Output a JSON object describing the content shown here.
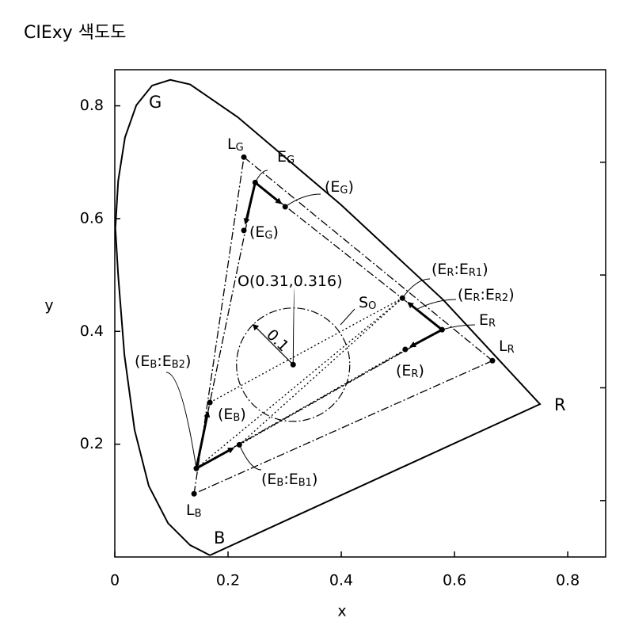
{
  "chart_data": {
    "type": "chromaticity",
    "title": "CIExy 색도도",
    "xlabel": "x",
    "ylabel": "y",
    "xlim": [
      0,
      0.867
    ],
    "ylim": [
      0,
      0.864
    ],
    "xticks": [
      0,
      0.2,
      0.4,
      0.6,
      0.8
    ],
    "yticks": [
      0.2,
      0.4,
      0.6,
      0.8
    ],
    "yminorticks": [
      0.1,
      0.3,
      0.5,
      0.7
    ],
    "locus": {
      "x": [
        0.168,
        0.133,
        0.094,
        0.06,
        0.035,
        0.017,
        0.006,
        0.001,
        0.006,
        0.018,
        0.038,
        0.066,
        0.098,
        0.133,
        0.217,
        0.399,
        0.58,
        0.751,
        0.168
      ],
      "y": [
        0.003,
        0.021,
        0.06,
        0.126,
        0.225,
        0.358,
        0.499,
        0.583,
        0.667,
        0.744,
        0.801,
        0.836,
        0.846,
        0.838,
        0.78,
        0.625,
        0.456,
        0.271,
        0.003
      ]
    },
    "locus_labels": [
      "G",
      "R",
      "B"
    ],
    "points": [
      {
        "label": [
          "L",
          "G"
        ],
        "x": 0.228,
        "y": 0.709
      },
      {
        "label": [
          "E",
          "G"
        ],
        "x": 0.248,
        "y": 0.664
      },
      {
        "label": [
          "(E",
          "G",
          ")"
        ],
        "x": 0.301,
        "y": 0.621
      },
      {
        "label": [
          "(E",
          "G",
          ")"
        ],
        "x": 0.228,
        "y": 0.579
      },
      {
        "label": [
          "(E",
          "R",
          ":E",
          "R1",
          ")"
        ],
        "x": 0.508,
        "y": 0.459
      },
      {
        "label": [
          "(E",
          "R",
          ":E",
          "R2",
          ")"
        ],
        "x": 0.535,
        "y": 0.44,
        "marker": false
      },
      {
        "label": [
          "E",
          "R"
        ],
        "x": 0.578,
        "y": 0.403
      },
      {
        "label": [
          "(E",
          "R",
          ")"
        ],
        "x": 0.513,
        "y": 0.368
      },
      {
        "label": [
          "L",
          "R"
        ],
        "x": 0.667,
        "y": 0.348
      },
      {
        "label": [
          "L",
          "B"
        ],
        "x": 0.14,
        "y": 0.112
      },
      {
        "label": [
          "(E",
          "B",
          ":E",
          "B2",
          ")"
        ],
        "x": 0.144,
        "y": 0.157
      },
      {
        "label": [
          "(E",
          "B",
          ":E",
          "B1",
          ")"
        ],
        "x": 0.22,
        "y": 0.199
      },
      {
        "label": [
          "(E",
          "B",
          ")"
        ],
        "x": 0.168,
        "y": 0.274
      },
      {
        "label": [
          "O(0.31,0.316)"
        ],
        "x": 0.315,
        "y": 0.341
      }
    ],
    "circle": {
      "label": [
        "S",
        "O"
      ],
      "radius": 0.1,
      "radius_label": "0.1"
    }
  }
}
